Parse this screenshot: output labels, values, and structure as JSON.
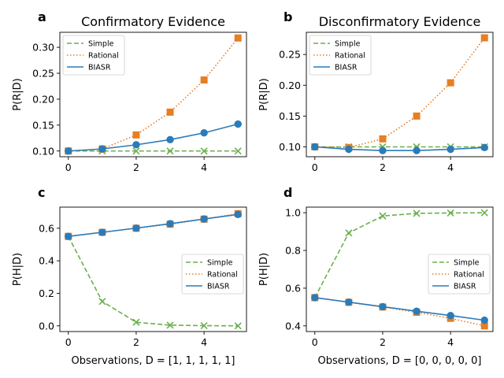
{
  "colors": {
    "simple": "#6ab04c",
    "rational": "#e67e22",
    "biasr": "#2b7bb9"
  },
  "chart_data": [
    {
      "type": "line",
      "letter": "a",
      "title": "Confirmatory Evidence",
      "xlabel": "",
      "ylabel": "P(R|D)",
      "xlim": [
        -0.25,
        5.25
      ],
      "ylim": [
        0.089,
        0.329
      ],
      "xticks": [
        0,
        2,
        4
      ],
      "yticks": [
        0.1,
        0.15,
        0.2,
        0.25,
        0.3
      ],
      "ytick_labels": [
        "0.10",
        "0.15",
        "0.20",
        "0.25",
        "0.30"
      ],
      "legend_position": "top-left",
      "x": [
        0,
        1,
        2,
        3,
        4,
        5
      ],
      "series": [
        {
          "name": "Simple",
          "style": "dashed",
          "marker": "x",
          "color": "#6ab04c",
          "values": [
            0.1,
            0.1,
            0.1,
            0.1,
            0.1,
            0.1
          ]
        },
        {
          "name": "Rational",
          "style": "dotted",
          "marker": "square",
          "color": "#e67e22",
          "values": [
            0.1,
            0.104,
            0.131,
            0.175,
            0.237,
            0.318
          ]
        },
        {
          "name": "BIASR",
          "style": "solid",
          "marker": "circle",
          "color": "#2b7bb9",
          "values": [
            0.1,
            0.104,
            0.112,
            0.122,
            0.135,
            0.152
          ]
        }
      ]
    },
    {
      "type": "line",
      "letter": "b",
      "title": "Disconfirmatory Evidence",
      "xlabel": "",
      "ylabel": "P(R|D)",
      "xlim": [
        -0.25,
        5.25
      ],
      "ylim": [
        0.084,
        0.286
      ],
      "xticks": [
        0,
        2,
        4
      ],
      "yticks": [
        0.1,
        0.15,
        0.2,
        0.25
      ],
      "ytick_labels": [
        "0.10",
        "0.15",
        "0.20",
        "0.25"
      ],
      "legend_position": "top-left",
      "x": [
        0,
        1,
        2,
        3,
        4,
        5
      ],
      "series": [
        {
          "name": "Simple",
          "style": "dashed",
          "marker": "x",
          "color": "#6ab04c",
          "values": [
            0.1,
            0.1,
            0.1,
            0.1,
            0.1,
            0.1
          ]
        },
        {
          "name": "Rational",
          "style": "dotted",
          "marker": "square",
          "color": "#e67e22",
          "values": [
            0.1,
            0.099,
            0.113,
            0.15,
            0.204,
            0.277
          ]
        },
        {
          "name": "BIASR",
          "style": "solid",
          "marker": "circle",
          "color": "#2b7bb9",
          "values": [
            0.1,
            0.096,
            0.094,
            0.094,
            0.096,
            0.099
          ]
        }
      ]
    },
    {
      "type": "line",
      "letter": "c",
      "title": "",
      "xlabel": "Observations, D = [1, 1, 1, 1, 1]",
      "ylabel": "P(H|D)",
      "xlim": [
        -0.25,
        5.25
      ],
      "ylim": [
        -0.035,
        0.73
      ],
      "xticks": [
        0,
        2,
        4
      ],
      "yticks": [
        0.0,
        0.2,
        0.4,
        0.6
      ],
      "ytick_labels": [
        "0.0",
        "0.2",
        "0.4",
        "0.6"
      ],
      "legend_position": "center-right",
      "x": [
        0,
        1,
        2,
        3,
        4,
        5
      ],
      "series": [
        {
          "name": "Simple",
          "style": "dashed",
          "marker": "x",
          "color": "#6ab04c",
          "values": [
            0.55,
            0.15,
            0.022,
            0.004,
            0.001,
            0.0
          ]
        },
        {
          "name": "Rational",
          "style": "dotted",
          "marker": "square",
          "color": "#e67e22",
          "values": [
            0.55,
            0.575,
            0.6,
            0.625,
            0.656,
            0.69
          ]
        },
        {
          "name": "BIASR",
          "style": "solid",
          "marker": "circle",
          "color": "#2b7bb9",
          "values": [
            0.55,
            0.575,
            0.601,
            0.628,
            0.657,
            0.685
          ]
        }
      ]
    },
    {
      "type": "line",
      "letter": "d",
      "title": "",
      "xlabel": "Observations, D = [0, 0, 0, 0, 0]",
      "ylabel": "P(H|D)",
      "xlim": [
        -0.25,
        5.25
      ],
      "ylim": [
        0.37,
        1.03
      ],
      "xticks": [
        0,
        2,
        4
      ],
      "yticks": [
        0.4,
        0.6,
        0.8,
        1.0
      ],
      "ytick_labels": [
        "0.4",
        "0.6",
        "0.8",
        "1.0"
      ],
      "legend_position": "center-right",
      "x": [
        0,
        1,
        2,
        3,
        4,
        5
      ],
      "series": [
        {
          "name": "Simple",
          "style": "dashed",
          "marker": "x",
          "color": "#6ab04c",
          "values": [
            0.55,
            0.893,
            0.983,
            0.997,
            0.999,
            1.0
          ]
        },
        {
          "name": "Rational",
          "style": "dotted",
          "marker": "square",
          "color": "#e67e22",
          "values": [
            0.55,
            0.525,
            0.5,
            0.472,
            0.44,
            0.4
          ]
        },
        {
          "name": "BIASR",
          "style": "solid",
          "marker": "circle",
          "color": "#2b7bb9",
          "values": [
            0.55,
            0.526,
            0.502,
            0.478,
            0.455,
            0.43
          ]
        }
      ]
    }
  ]
}
